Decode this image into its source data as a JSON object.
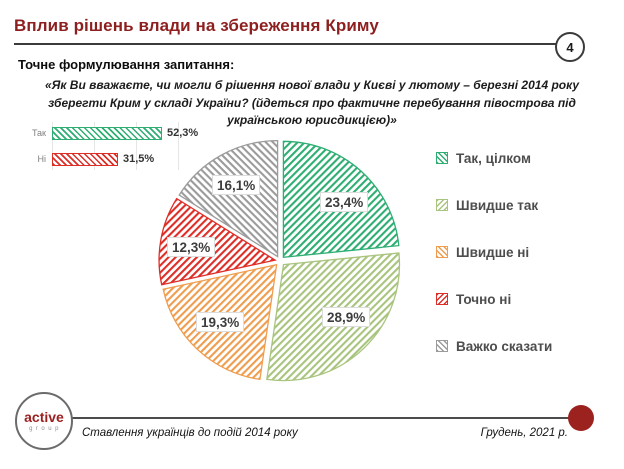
{
  "slide": {
    "title": "Вплив рішень влади на збереження Криму",
    "page_number": "4",
    "question_heading": "Точне формулювання запитання:",
    "question_text": "«Як Ви вважаєте, чи могли б рішення нової влади у Києві у лютому – березні 2014 року зберегти Крим у складі України? (йдеться про фактичне перебування півострова під українською юрисдикцією)»",
    "accent_color": "#8E1F1F",
    "footer": {
      "logo_primary": "active",
      "logo_secondary": "group",
      "series_title": "Ставлення українців до подій 2014 року",
      "date": "Грудень, 2021 р.",
      "dot_color": "#9B221F"
    }
  },
  "chart_data": [
    {
      "type": "bar",
      "orientation": "horizontal",
      "title": "",
      "categories": [
        "Так",
        "Ні"
      ],
      "values": [
        52.3,
        31.5
      ],
      "value_labels": [
        "52,3%",
        "31,5%"
      ],
      "colors": [
        "#2FAE73",
        "#DE2E28"
      ],
      "xlim": [
        0,
        60
      ],
      "grid": true,
      "fill_style": "diagonal-hatch"
    },
    {
      "type": "pie",
      "start_angle_deg": 0,
      "direction": "clockwise",
      "legend_position": "right",
      "fill_style": "diagonal-hatch",
      "exploded": true,
      "slices": [
        {
          "label": "Так, цілком",
          "value": 23.4,
          "display": "23,4%",
          "color": "#2FAE73"
        },
        {
          "label": "Швидше так",
          "value": 28.9,
          "display": "28,9%",
          "color": "#A9C47E"
        },
        {
          "label": "Швидше ні",
          "value": 19.3,
          "display": "19,3%",
          "color": "#EF9D4F"
        },
        {
          "label": "Точно ні",
          "value": 12.3,
          "display": "12,3%",
          "color": "#DE2E28"
        },
        {
          "label": "Важко сказати",
          "value": 16.1,
          "display": "16,1%",
          "color": "#9B9B9B"
        }
      ]
    }
  ]
}
